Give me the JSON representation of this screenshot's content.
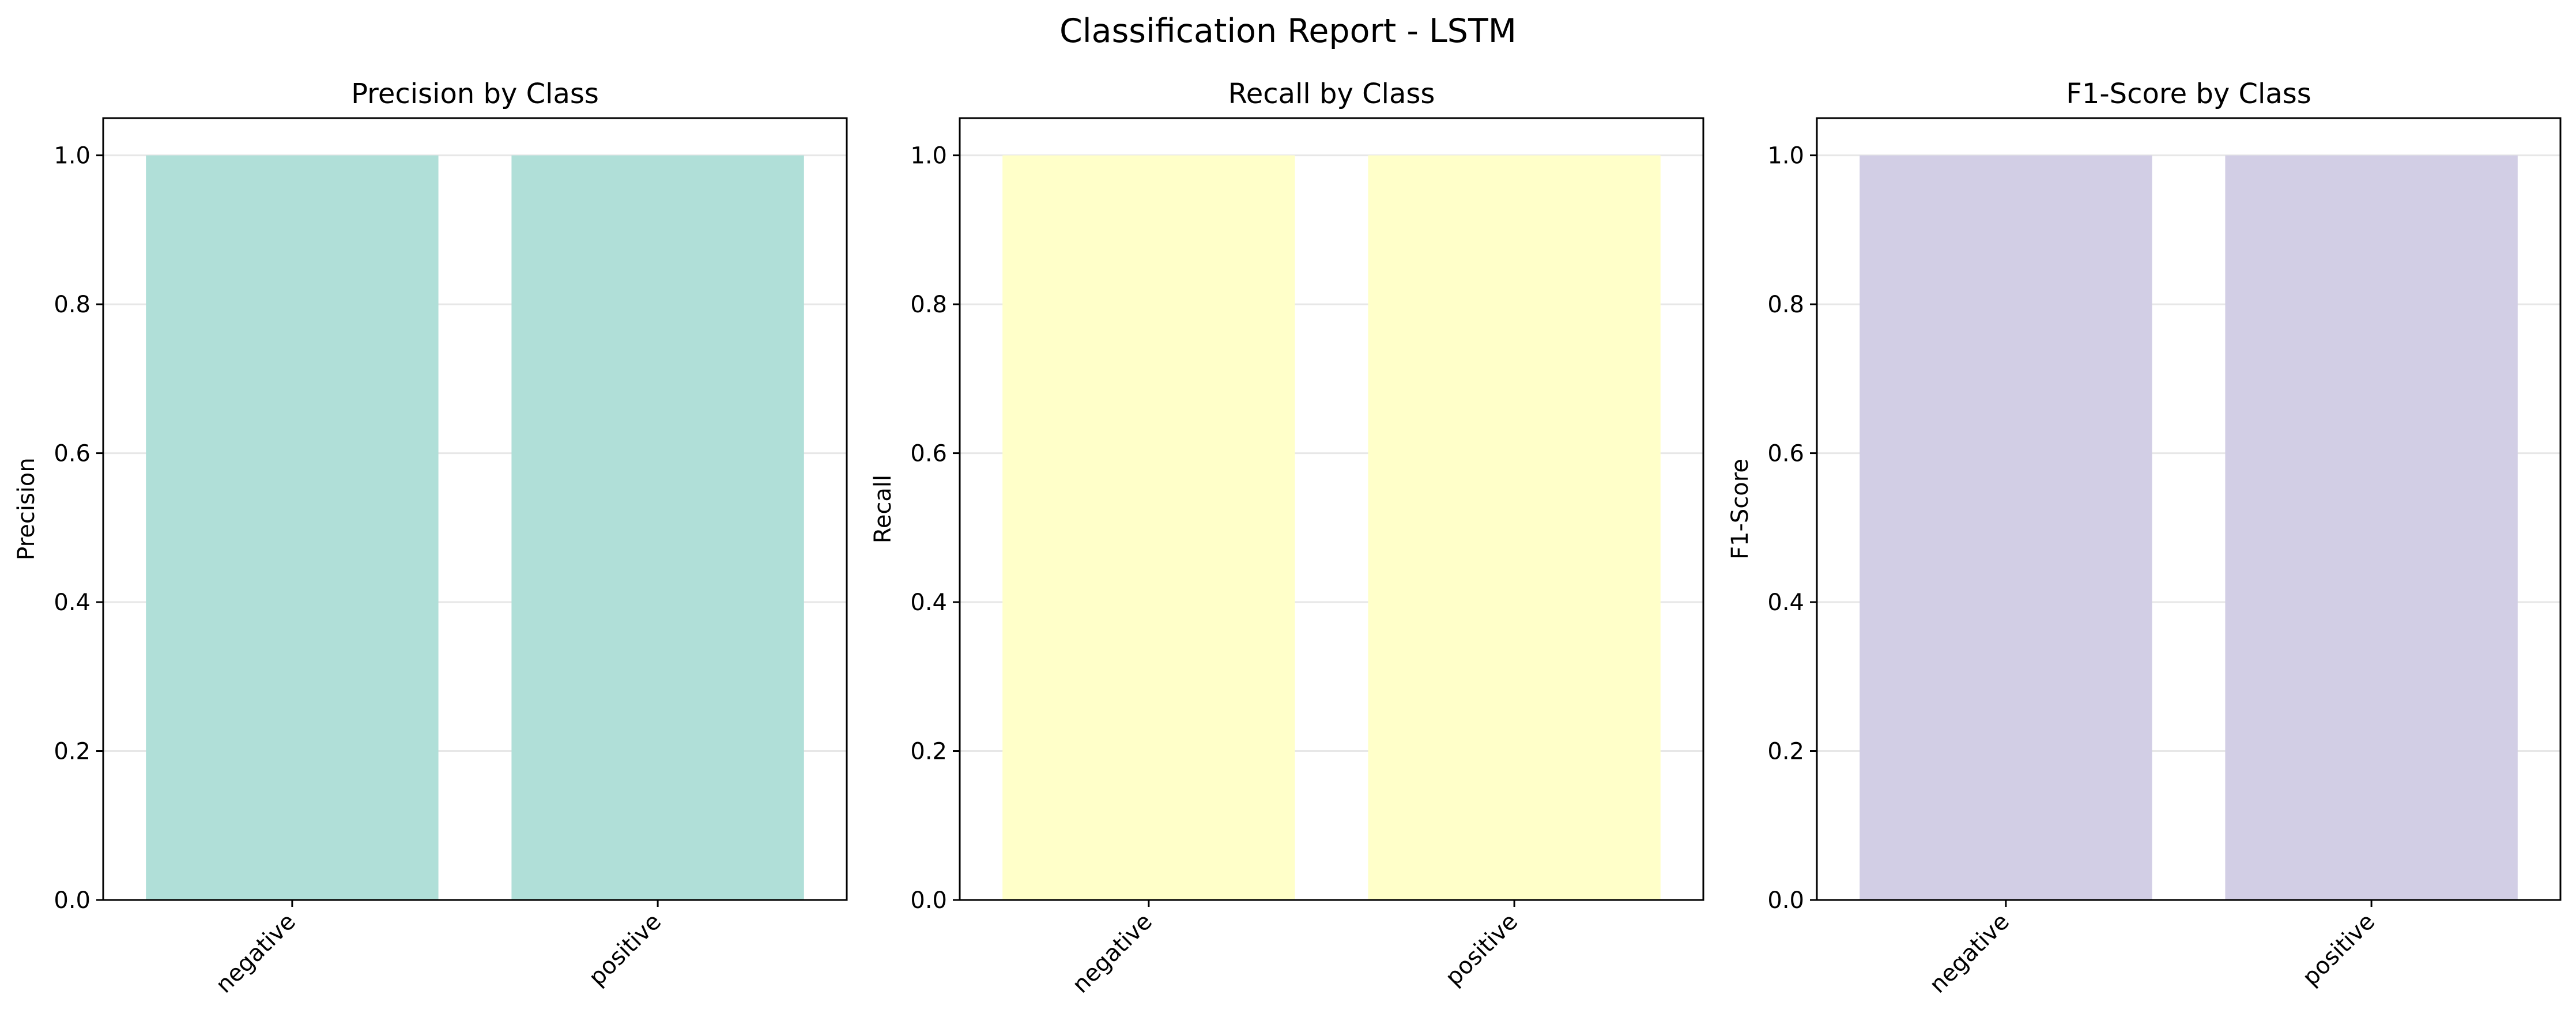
{
  "figure": {
    "title": "Classification Report - LSTM"
  },
  "chart_data": [
    {
      "type": "bar",
      "title": "Precision by Class",
      "xlabel": "",
      "ylabel": "Precision",
      "categories": [
        "negative",
        "positive"
      ],
      "values": [
        1.0,
        1.0
      ],
      "ylim": [
        0,
        1.05
      ],
      "yticks": [
        "0.0",
        "0.2",
        "0.4",
        "0.6",
        "0.8",
        "1.0"
      ],
      "grid": "y",
      "color": "#b0dfd8"
    },
    {
      "type": "bar",
      "title": "Recall by Class",
      "xlabel": "",
      "ylabel": "Recall",
      "categories": [
        "negative",
        "positive"
      ],
      "values": [
        1.0,
        1.0
      ],
      "ylim": [
        0,
        1.05
      ],
      "yticks": [
        "0.0",
        "0.2",
        "0.4",
        "0.6",
        "0.8",
        "1.0"
      ],
      "grid": "y",
      "color": "#ffffc9"
    },
    {
      "type": "bar",
      "title": "F1-Score by Class",
      "xlabel": "",
      "ylabel": "F1-Score",
      "categories": [
        "negative",
        "positive"
      ],
      "values": [
        1.0,
        1.0
      ],
      "ylim": [
        0,
        1.05
      ],
      "yticks": [
        "0.0",
        "0.2",
        "0.4",
        "0.6",
        "0.8",
        "1.0"
      ],
      "grid": "y",
      "color": "#d2cee5"
    }
  ]
}
